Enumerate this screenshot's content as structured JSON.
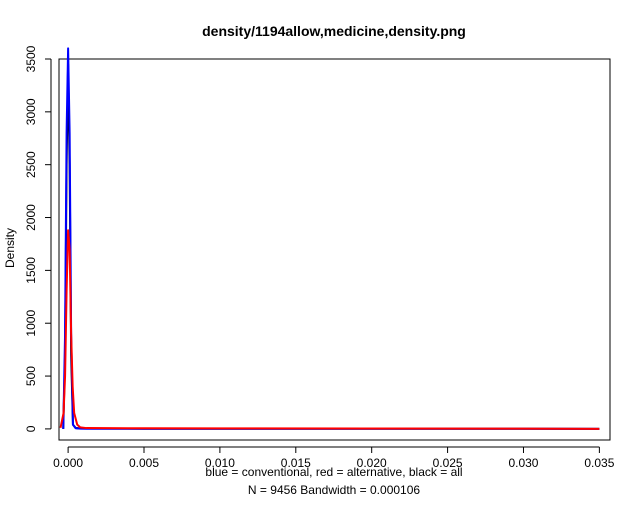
{
  "chart_data": {
    "type": "line",
    "title": "density/1194allow,medicine,density.png",
    "xlabel": "blue = conventional, red = alternative, black = all",
    "xlabel2": "N = 9456   Bandwidth = 0.000106",
    "ylabel": "Density",
    "xlim": [
      -0.0006,
      0.0357
    ],
    "ylim": [
      -105,
      3500
    ],
    "x_ticks": [
      0.0,
      0.005,
      0.01,
      0.015,
      0.02,
      0.025,
      0.03,
      0.035
    ],
    "x_tick_labels": [
      "0.000",
      "0.005",
      "0.010",
      "0.015",
      "0.020",
      "0.025",
      "0.030",
      "0.035"
    ],
    "y_ticks": [
      0,
      500,
      1000,
      1500,
      2000,
      2500,
      3000,
      3500
    ],
    "y_tick_labels": [
      "0",
      "500",
      "1000",
      "1500",
      "2000",
      "2500",
      "3000",
      "3500"
    ],
    "grid": false,
    "series": [
      {
        "name": "all",
        "color": "#000000",
        "x": [
          -0.00032,
          -0.0002,
          -0.0001,
          0.0,
          0.0001,
          0.0002,
          0.00032,
          0.0005,
          0.0008,
          0.0012,
          0.005,
          0.01,
          0.02,
          0.03,
          0.035
        ],
        "y": [
          0,
          700,
          2500,
          3450,
          2500,
          700,
          40,
          8,
          5,
          4,
          2,
          1,
          1,
          1,
          0
        ]
      },
      {
        "name": "conventional",
        "color": "#0000ff",
        "x": [
          -0.00032,
          -0.0002,
          -0.0001,
          0.0,
          0.0001,
          0.0002,
          0.00032,
          0.0005,
          0.0008,
          0.0012,
          0.005,
          0.01,
          0.02,
          0.03,
          0.035
        ],
        "y": [
          0,
          900,
          2800,
          3600,
          2800,
          900,
          40,
          6,
          3,
          2,
          1,
          1,
          1,
          1,
          0
        ]
      },
      {
        "name": "alternative",
        "color": "#ff0000",
        "x": [
          -0.0005,
          -0.0003,
          -0.0002,
          -0.0001,
          0.0,
          0.0001,
          0.0002,
          0.0003,
          0.0004,
          0.0006,
          0.0008,
          0.0012,
          0.005,
          0.01,
          0.02,
          0.03,
          0.035
        ],
        "y": [
          10,
          150,
          500,
          1300,
          1880,
          1700,
          900,
          400,
          150,
          40,
          15,
          8,
          6,
          5,
          4,
          3,
          0
        ]
      }
    ]
  }
}
